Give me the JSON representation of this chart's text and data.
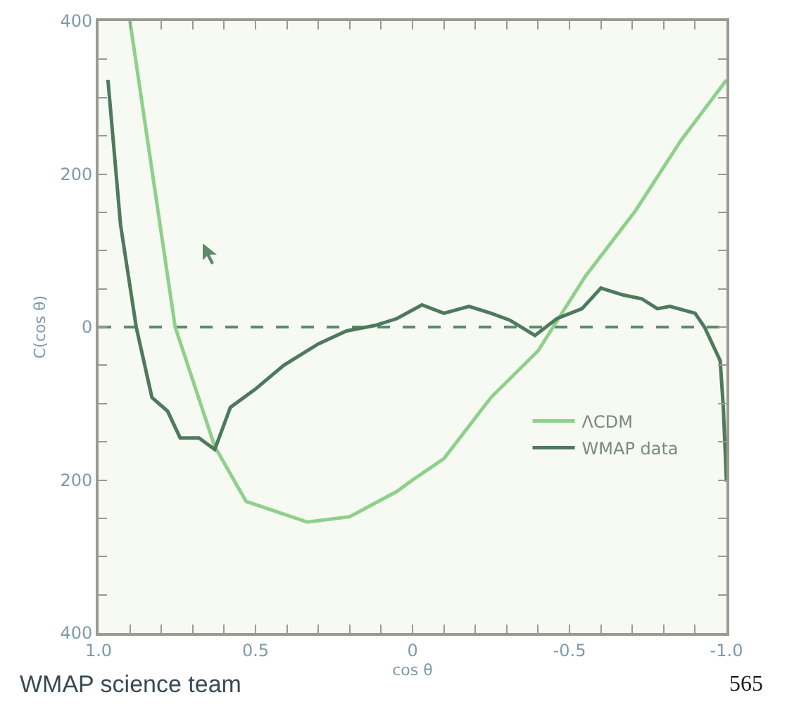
{
  "chart_data": {
    "type": "line",
    "xlabel": "cos θ",
    "ylabel": "C(cos θ)",
    "xlim": [
      1.0,
      -1.0
    ],
    "ylim": [
      -400,
      400
    ],
    "xticks": [
      {
        "value": 1,
        "label": "1.0"
      },
      {
        "value": 0.9,
        "label": null
      },
      {
        "value": 0.8,
        "label": null
      },
      {
        "value": 0.7,
        "label": null
      },
      {
        "value": 0.6,
        "label": null
      },
      0.5,
      {
        "value": 0.4,
        "label": null
      },
      {
        "value": 0.3,
        "label": null
      },
      {
        "value": 0.2,
        "label": null
      },
      {
        "value": 0.1,
        "label": null
      },
      0,
      {
        "value": -0.1,
        "label": null
      },
      {
        "value": -0.2,
        "label": null
      },
      {
        "value": -0.3,
        "label": null
      },
      {
        "value": -0.4,
        "label": null
      },
      -0.5,
      {
        "value": -0.6,
        "label": null
      },
      {
        "value": -0.7,
        "label": null
      },
      {
        "value": -0.8,
        "label": null
      },
      {
        "value": -0.9,
        "label": null
      },
      {
        "value": -1,
        "label": "-1.0"
      }
    ],
    "yticks": [
      {
        "value": -400,
        "label": "400"
      },
      {
        "value": -350,
        "label": null
      },
      {
        "value": -300,
        "label": null
      },
      {
        "value": -250,
        "label": null
      },
      {
        "value": -200,
        "label": "200"
      },
      {
        "value": -150,
        "label": null
      },
      {
        "value": -100,
        "label": null
      },
      {
        "value": -50,
        "label": null
      },
      0,
      {
        "value": 50,
        "label": null
      },
      {
        "value": 100,
        "label": null
      },
      {
        "value": 150,
        "label": null
      },
      200,
      {
        "value": 250,
        "label": null
      },
      {
        "value": 300,
        "label": null
      },
      {
        "value": 350,
        "label": null
      },
      400
    ],
    "series": [
      {
        "name": "ΛCDM",
        "color": "#8fd08a",
        "x": [
          0.9,
          0.756,
          0.63,
          0.53,
          0.335,
          0.2,
          0.05,
          0,
          -0.1,
          -0.25,
          -0.4,
          -0.55,
          -0.71,
          -0.855,
          -1.0
        ],
        "values": [
          400,
          0,
          -156,
          -228,
          -255,
          -248,
          -215,
          -200,
          -172,
          -92,
          -31,
          66,
          152,
          244,
          323
        ]
      },
      {
        "name": "WMAP data",
        "color": "#4e7a5c",
        "x": [
          0.97,
          0.93,
          0.88,
          0.83,
          0.78,
          0.74,
          0.68,
          0.63,
          0.58,
          0.5,
          0.41,
          0.3,
          0.21,
          0.12,
          0.05,
          -0.03,
          -0.1,
          -0.18,
          -0.25,
          -0.31,
          -0.39,
          -0.46,
          -0.54,
          -0.6,
          -0.67,
          -0.73,
          -0.78,
          -0.82,
          -0.9,
          -0.93,
          -0.98,
          -0.99,
          -1.0
        ],
        "values": [
          323,
          134,
          0,
          -92,
          -110,
          -145,
          -145,
          -160,
          -105,
          -81,
          -50,
          -22,
          -5,
          2,
          11,
          29,
          18,
          27,
          18,
          9,
          -11,
          11,
          24,
          51,
          42,
          37,
          24,
          27,
          18,
          0,
          -44,
          -105,
          -202
        ]
      }
    ],
    "ref_lines": [
      {
        "axis": "y",
        "value": 0,
        "color": "#5a8a6a",
        "line_style": "dashed"
      }
    ],
    "legend": "bottom right",
    "grid": false,
    "annotations": [
      "WMAP science team",
      "565"
    ]
  }
}
